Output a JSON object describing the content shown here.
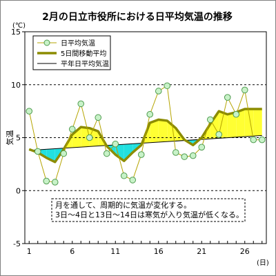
{
  "chart_data": {
    "type": "line",
    "title": "2月の日立市役所における日平均気温の推移",
    "ylabel": "気温",
    "y_unit": "(℃)",
    "x_unit": "(日)",
    "ylim": [
      -5,
      15
    ],
    "xlim": [
      1,
      28
    ],
    "y_ticks": [
      -5,
      0,
      5,
      10,
      15
    ],
    "y_gridlines": [
      0,
      5,
      10
    ],
    "x_ticks": [
      1,
      6,
      11,
      16,
      21,
      26
    ],
    "legend_position": "top-left",
    "x": [
      1,
      2,
      3,
      4,
      5,
      6,
      7,
      8,
      9,
      10,
      11,
      12,
      13,
      14,
      15,
      16,
      17,
      18,
      19,
      20,
      21,
      22,
      23,
      24,
      25,
      26,
      27,
      28
    ],
    "series": [
      {
        "name": "日平均気温",
        "style": "line-with-markers",
        "color": "#b5a400",
        "marker_fill": "#c8f2c8",
        "marker_stroke": "#4f9b4f",
        "values": [
          7.5,
          3.7,
          0.9,
          0.8,
          3.5,
          5.8,
          8.2,
          5.0,
          6.9,
          3.5,
          4.4,
          1.4,
          1.0,
          3.4,
          7.2,
          9.4,
          9.9,
          3.6,
          3.2,
          3.3,
          4.1,
          6.7,
          5.3,
          8.8,
          7.2,
          9.5,
          4.8,
          4.8
        ]
      },
      {
        "name": "5日間移動平均",
        "style": "thick-line",
        "color": "#8c8c00",
        "x": [
          1,
          2,
          3,
          4,
          5,
          6,
          7,
          8,
          9,
          10,
          11,
          12,
          13,
          14,
          15,
          16,
          17,
          18,
          19,
          20,
          21,
          22,
          23,
          24,
          25,
          26,
          27,
          28
        ],
        "values": [
          3.9,
          3.6,
          3.1,
          2.7,
          3.9,
          5.3,
          6.0,
          5.9,
          5.6,
          4.2,
          3.4,
          2.8,
          3.6,
          4.3,
          6.4,
          6.7,
          6.6,
          5.9,
          4.8,
          4.3,
          5.0,
          6.3,
          7.5,
          7.2,
          7.4,
          7.7,
          7.7,
          7.7
        ]
      },
      {
        "name": "平年日平均気温",
        "style": "thin-line",
        "color": "#000000",
        "x": [
          1,
          28
        ],
        "values": [
          3.8,
          5.2
        ]
      }
    ],
    "fill_above_normal_color": "#ffff33",
    "fill_below_normal_color": "#22e0e0",
    "annotation": [
      "月を通して、周期的に気温が変化する。",
      "3日～4日と13日～14日は寒気が入り気温が低くなる。"
    ]
  }
}
